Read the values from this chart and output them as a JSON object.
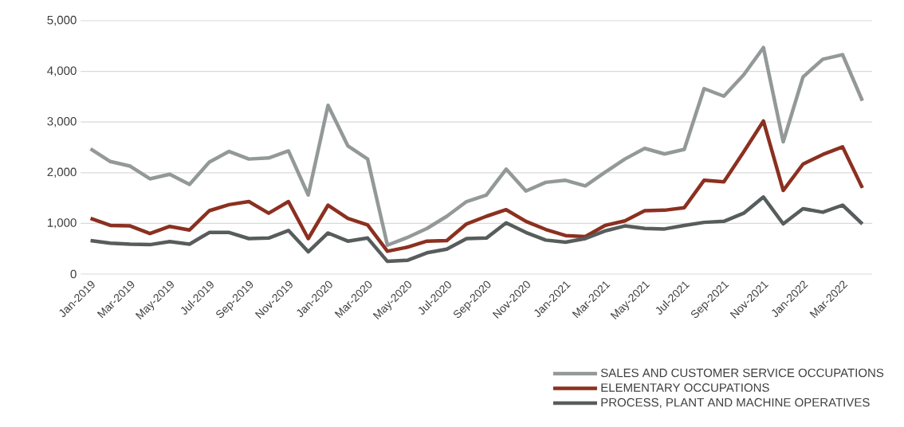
{
  "chart_data": {
    "type": "line",
    "categories": [
      "Jan-2019",
      null,
      "Mar-2019",
      null,
      "May-2019",
      null,
      "Jul-2019",
      null,
      "Sep-2019",
      null,
      "Nov-2019",
      null,
      "Jan-2020",
      null,
      "Mar-2020",
      null,
      "May-2020",
      null,
      "Jul-2020",
      null,
      "Sep-2020",
      null,
      "Nov-2020",
      null,
      "Jan-2021",
      null,
      "Mar-2021",
      null,
      "May-2021",
      null,
      "Jul-2021",
      null,
      "Sep-2021",
      null,
      "Nov-2021",
      null,
      "Jan-2022",
      null,
      "Mar-2022",
      null
    ],
    "series": [
      {
        "name": "SALES AND CUSTOMER SERVICE OCCUPATIONS",
        "color": "#939998",
        "values": [
          2470,
          2220,
          2130,
          1880,
          1970,
          1770,
          2210,
          2420,
          2270,
          2290,
          2430,
          1560,
          3330,
          2530,
          2270,
          570,
          720,
          900,
          1140,
          1430,
          1560,
          2070,
          1640,
          1810,
          1850,
          1740,
          2010,
          2270,
          2480,
          2370,
          2460,
          3660,
          3510,
          3930,
          4470,
          2610,
          3890,
          4240,
          4330,
          3420
        ]
      },
      {
        "name": "ELEMENTARY OCCUPATIONS",
        "color": "#8b3020",
        "values": [
          1100,
          960,
          950,
          800,
          940,
          870,
          1250,
          1370,
          1430,
          1200,
          1430,
          700,
          1360,
          1100,
          970,
          450,
          530,
          650,
          660,
          990,
          1140,
          1270,
          1040,
          880,
          760,
          740,
          960,
          1050,
          1250,
          1260,
          1310,
          1850,
          1820,
          2410,
          3020,
          1650,
          2170,
          2360,
          2510,
          1700
        ]
      },
      {
        "name": "PROCESS, PLANT AND MACHINE OPERATIVES",
        "color": "#575c5c",
        "values": [
          660,
          610,
          590,
          580,
          640,
          590,
          820,
          820,
          700,
          710,
          860,
          440,
          810,
          650,
          710,
          250,
          270,
          420,
          490,
          700,
          710,
          1010,
          820,
          670,
          630,
          700,
          850,
          950,
          900,
          890,
          960,
          1020,
          1040,
          1200,
          1520,
          990,
          1290,
          1220,
          1360,
          990
        ]
      }
    ],
    "ylim": [
      0,
      5000
    ],
    "yticks": [
      0,
      {
        "value": 1000,
        "label": "1,000"
      },
      {
        "value": 2000,
        "label": "2,000"
      },
      {
        "value": 3000,
        "label": "3,000"
      },
      {
        "value": 4000,
        "label": "4,000"
      },
      {
        "value": 5000,
        "label": "5,000"
      }
    ],
    "grid": "y",
    "legend": "bottom right",
    "marker": "none",
    "line_style": "solid"
  }
}
